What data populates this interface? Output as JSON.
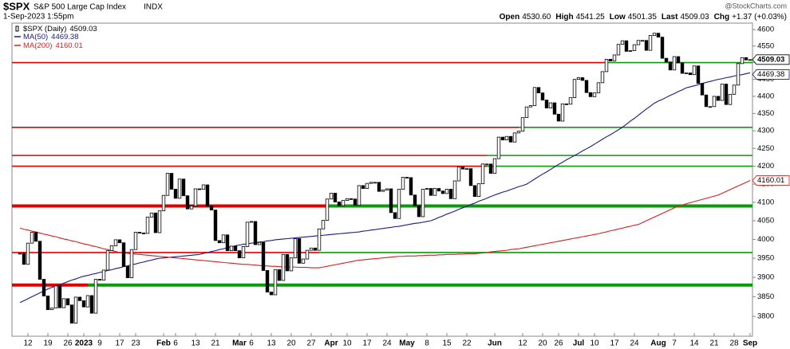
{
  "chart_data": {
    "type": "candlestick",
    "symbol": "$SPX",
    "description": "S&P 500 Large Cap Index",
    "exchange": "INDX",
    "timestamp": "1-Sep-2023 1:55pm",
    "watermark": "@StockCharts.com",
    "quote": [
      {
        "label": "Open",
        "value": "4530.60"
      },
      {
        "label": "High",
        "value": "4541.25"
      },
      {
        "label": "Low",
        "value": "4501.35"
      },
      {
        "label": "Last",
        "value": "4509.03"
      },
      {
        "label": "Chg",
        "value": "+1.37 (+0.03%)"
      }
    ],
    "categories": [
      null,
      null,
      "12",
      null,
      null,
      null,
      null,
      "19",
      null,
      null,
      null,
      null,
      "26",
      null,
      null,
      null,
      "2023",
      null,
      null,
      null,
      "9",
      null,
      null,
      null,
      null,
      "17",
      null,
      null,
      null,
      "23",
      null,
      null,
      null,
      null,
      null,
      null,
      "Feb",
      null,
      null,
      "6",
      null,
      null,
      null,
      null,
      "13",
      null,
      null,
      null,
      null,
      "21",
      null,
      null,
      null,
      null,
      null,
      "Mar",
      null,
      null,
      "6",
      null,
      null,
      null,
      null,
      "13",
      null,
      null,
      null,
      null,
      "20",
      null,
      null,
      null,
      null,
      "27",
      null,
      null,
      null,
      null,
      "Apr",
      null,
      null,
      null,
      "10",
      null,
      null,
      null,
      null,
      "17",
      null,
      null,
      null,
      null,
      "24",
      null,
      null,
      null,
      null,
      "May",
      null,
      null,
      null,
      null,
      "8",
      null,
      null,
      null,
      null,
      "15",
      null,
      null,
      null,
      null,
      "22",
      null,
      null,
      null,
      null,
      null,
      null,
      "Jun",
      null,
      null,
      null,
      null,
      null,
      null,
      "12",
      null,
      null,
      null,
      null,
      "20",
      null,
      null,
      null,
      "26",
      null,
      null,
      null,
      null,
      "Jul",
      null,
      null,
      null,
      "10",
      null,
      null,
      null,
      null,
      "17",
      null,
      null,
      null,
      null,
      "24",
      null,
      null,
      null,
      null,
      null,
      "Aug",
      null,
      null,
      null,
      "7",
      null,
      null,
      null,
      null,
      "14",
      null,
      null,
      null,
      null,
      "21",
      null,
      null,
      null,
      null,
      "28",
      null,
      null,
      null,
      "Sep"
    ],
    "series": [
      {
        "name": "$SPX (Daily)",
        "value_label": "4509.03",
        "color": "#000000",
        "values": [
          3963,
          3934,
          3990,
          4019,
          3995,
          3895,
          3852,
          3817,
          3821,
          3878,
          3822,
          3845,
          3829,
          3783,
          3849,
          3840,
          3824,
          3853,
          3808,
          3895,
          3893,
          3919,
          3970,
          3983,
          3999,
          3991,
          3929,
          3899,
          3973,
          4019,
          4017,
          4016,
          4060,
          4071,
          4018,
          4077,
          4119,
          4180,
          4136,
          4111,
          4164,
          4118,
          4082,
          4090,
          4137,
          4136,
          4148,
          4090,
          4079,
          3997,
          3991,
          4012,
          3970,
          3982,
          3970,
          3951,
          3981,
          4046,
          4048,
          3986,
          3992,
          3918,
          3862,
          3855,
          3920,
          3892,
          3960,
          3917,
          3951,
          4002,
          3937,
          3948,
          3971,
          3977,
          3971,
          4028,
          4051,
          4109,
          4125,
          4101,
          4091,
          4105,
          4110,
          4109,
          4092,
          4146,
          4138,
          4152,
          4155,
          4155,
          4130,
          4134,
          4137,
          4072,
          4056,
          4136,
          4169,
          4168,
          4120,
          4091,
          4061,
          4136,
          4138,
          4119,
          4138,
          4131,
          4124,
          4136,
          4110,
          4159,
          4198,
          4192,
          4193,
          4146,
          4116,
          4151,
          4206,
          4206,
          4180,
          4221,
          4282,
          4274,
          4284,
          4268,
          4294,
          4299,
          4338,
          4369,
          4373,
          4426,
          4410,
          4389,
          4366,
          4381,
          4348,
          4328,
          4378,
          4377,
          4396,
          4450,
          4455,
          4447,
          4411,
          4399,
          4410,
          4440,
          4473,
          4510,
          4505,
          4523,
          4555,
          4566,
          4534,
          4536,
          4554,
          4567,
          4567,
          4537,
          4582,
          4589,
          4577,
          4513,
          4502,
          4478,
          4518,
          4499,
          4468,
          4469,
          4464,
          4490,
          4438,
          4404,
          4370,
          4370,
          4400,
          4388,
          4436,
          4376,
          4406,
          4433,
          4497,
          4515,
          4508,
          4509.03
        ]
      },
      {
        "name": "MA(50)",
        "value_label": "4469.38",
        "color": "#1a1a80",
        "values": [
          3835,
          3840,
          3845,
          3850,
          3855,
          3860,
          3865,
          3870,
          3874,
          3878,
          3881,
          3885,
          3889,
          3893,
          3896,
          3900,
          3903,
          3905,
          3908,
          3910,
          3913,
          3915,
          3918,
          3920,
          3923,
          3925,
          3928,
          3930,
          3933,
          3935,
          3938,
          3940,
          3943,
          3945,
          3948,
          3950,
          3951,
          3952,
          3953,
          3954,
          3955,
          3956,
          3957,
          3958,
          3959,
          3960,
          3963,
          3965,
          3968,
          3970,
          3973,
          3975,
          3978,
          3980,
          3983,
          3985,
          3987,
          3988,
          3990,
          3991,
          3993,
          3994,
          3996,
          3997,
          3999,
          4000,
          4001,
          4002,
          4003,
          4004,
          4005,
          4006,
          4007,
          4008,
          4009,
          4010,
          4011,
          4012,
          4013,
          4014,
          4015,
          4016,
          4017,
          4018,
          4019,
          4020,
          4022,
          4023,
          4025,
          4026,
          4028,
          4029,
          4031,
          4032,
          4034,
          4035,
          4037,
          4039,
          4041,
          4043,
          4044,
          4046,
          4048,
          4050,
          4054,
          4059,
          4063,
          4068,
          4072,
          4076,
          4081,
          4085,
          4089,
          4094,
          4098,
          4103,
          4107,
          4111,
          4116,
          4120,
          4124,
          4128,
          4131,
          4135,
          4139,
          4143,
          4146,
          4150,
          4157,
          4164,
          4171,
          4178,
          4184,
          4191,
          4198,
          4205,
          4211,
          4218,
          4224,
          4230,
          4236,
          4243,
          4249,
          4255,
          4262,
          4269,
          4276,
          4283,
          4289,
          4296,
          4303,
          4310,
          4319,
          4328,
          4336,
          4345,
          4354,
          4363,
          4371,
          4380,
          4386,
          4391,
          4397,
          4403,
          4408,
          4414,
          4419,
          4425,
          4428,
          4431,
          4434,
          4438,
          4441,
          4444,
          4447,
          4450,
          4452,
          4455,
          4457,
          4460,
          4462,
          4464,
          4467,
          4469.38
        ]
      },
      {
        "name": "MA(200)",
        "value_label": "4160.01",
        "color": "#d42020",
        "values": [
          4030,
          4027,
          4025,
          4022,
          4020,
          4017,
          4014,
          4012,
          4009,
          4007,
          4004,
          4001,
          3999,
          3996,
          3994,
          3991,
          3988,
          3986,
          3983,
          3981,
          3978,
          3975,
          3973,
          3970,
          3968,
          3965,
          3964,
          3963,
          3962,
          3961,
          3960,
          3959,
          3958,
          3957,
          3956,
          3955,
          3954,
          3953,
          3952,
          3951,
          3950,
          3949,
          3948,
          3947,
          3946,
          3945,
          3944,
          3943,
          3942,
          3941,
          3940,
          3939,
          3938,
          3937,
          3936,
          3935,
          3934,
          3934,
          3933,
          3932,
          3931,
          3930,
          3930,
          3929,
          3929,
          3928,
          3928,
          3927,
          3927,
          3927,
          3926,
          3926,
          3926,
          3925,
          3925,
          3925,
          3927,
          3929,
          3931,
          3933,
          3935,
          3937,
          3939,
          3941,
          3943,
          3945,
          3946,
          3947,
          3948,
          3949,
          3950,
          3951,
          3952,
          3953,
          3954,
          3955,
          3955,
          3956,
          3956,
          3956,
          3957,
          3957,
          3958,
          3958,
          3958,
          3959,
          3959,
          3960,
          3960,
          3960,
          3961,
          3961,
          3962,
          3962,
          3962,
          3963,
          3964,
          3965,
          3967,
          3968,
          3969,
          3970,
          3971,
          3973,
          3974,
          3975,
          3977,
          3979,
          3981,
          3983,
          3985,
          3987,
          3989,
          3991,
          3993,
          3995,
          3997,
          3999,
          4001,
          4003,
          4005,
          4007,
          4009,
          4011,
          4013,
          4015,
          4018,
          4020,
          4023,
          4025,
          4028,
          4030,
          4033,
          4035,
          4038,
          4040,
          4045,
          4050,
          4055,
          4060,
          4065,
          4070,
          4075,
          4080,
          4085,
          4090,
          4093,
          4096,
          4099,
          4102,
          4105,
          4108,
          4111,
          4114,
          4117,
          4120,
          4125,
          4130,
          4135,
          4140,
          4145,
          4150,
          4155,
          4160.01
        ]
      }
    ],
    "levels": [
      {
        "value": 4500,
        "green_from": 147
      },
      {
        "value": 4310,
        "green_from": 125
      },
      {
        "value": 4230,
        "green_from": 117
      },
      {
        "value": 4200,
        "green_from": 117
      },
      {
        "value": 4090,
        "green_from": 77,
        "thick": true
      },
      {
        "value": 3965,
        "green_from": 75
      },
      {
        "value": 3880,
        "green_from": 17,
        "thick": true
      }
    ],
    "level_colors": [
      "#e00000",
      "#0a9a0a"
    ],
    "ylim": [
      3750,
      4620
    ],
    "yticks": [
      3800,
      3850,
      3900,
      3950,
      4000,
      4050,
      4100,
      4150,
      4200,
      4250,
      4300,
      4350,
      4400,
      4450,
      4500,
      4550,
      4600
    ],
    "log_scale": true,
    "grid": false
  }
}
